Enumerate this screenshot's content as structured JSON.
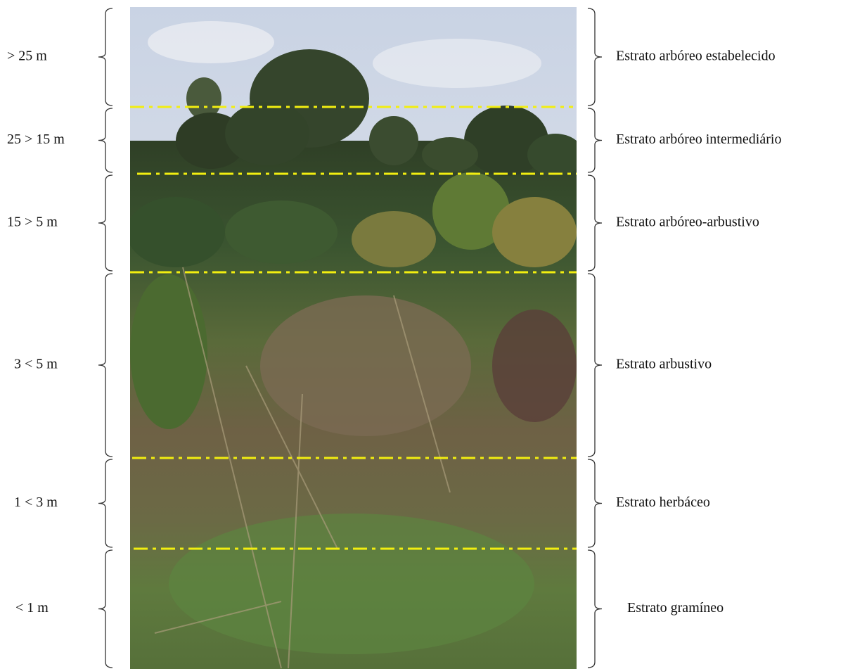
{
  "strata": [
    {
      "height": "> 25 m",
      "name": "Estrato arbóreo estabelecido"
    },
    {
      "height": "25 > 15 m",
      "name": "Estrato arbóreo intermediário"
    },
    {
      "height": "15 > 5 m",
      "name": "Estrato arbóreo-arbustivo"
    },
    {
      "height": "3 < 5 m",
      "name": "Estrato arbustivo"
    },
    {
      "height": "1 < 3 m",
      "name": "Estrato herbáceo"
    },
    {
      "height": "< 1 m",
      "name": "Estrato gramíneo"
    }
  ]
}
